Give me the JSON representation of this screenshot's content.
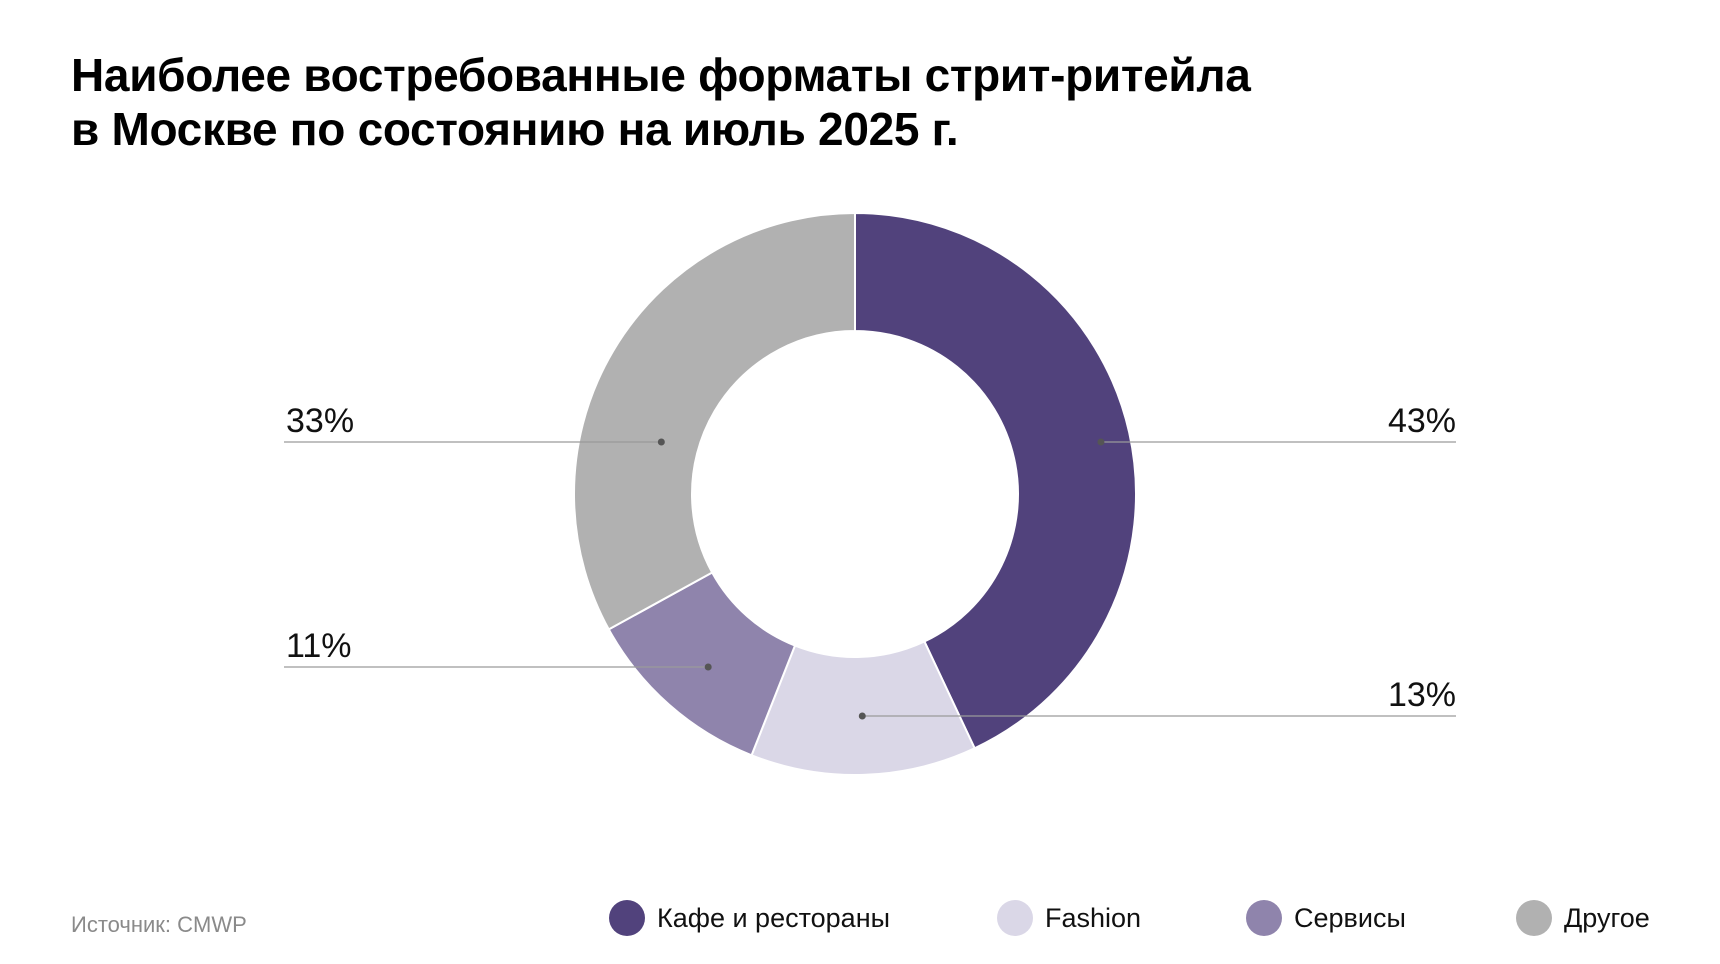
{
  "title": {
    "line1": "Наиболее востребованные форматы стрит-ритейла",
    "line2": "в Москве по состоянию на июль 2025 г."
  },
  "source": "Источник: CMWP",
  "chart_data": {
    "type": "pie",
    "variant": "donut",
    "start_angle": "12 o'clock, clockwise",
    "slices": [
      {
        "label": "Кафе и рестораны",
        "value": 43,
        "display": "43%",
        "color": "#51427c"
      },
      {
        "label": "Fashion",
        "value": 13,
        "display": "13%",
        "color": "#dad7e7"
      },
      {
        "label": "Сервисы",
        "value": 11,
        "display": "11%",
        "color": "#8f84ac"
      },
      {
        "label": "Другое",
        "value": 33,
        "display": "33%",
        "color": "#b1b1b1"
      }
    ],
    "legend_position": "bottom"
  }
}
